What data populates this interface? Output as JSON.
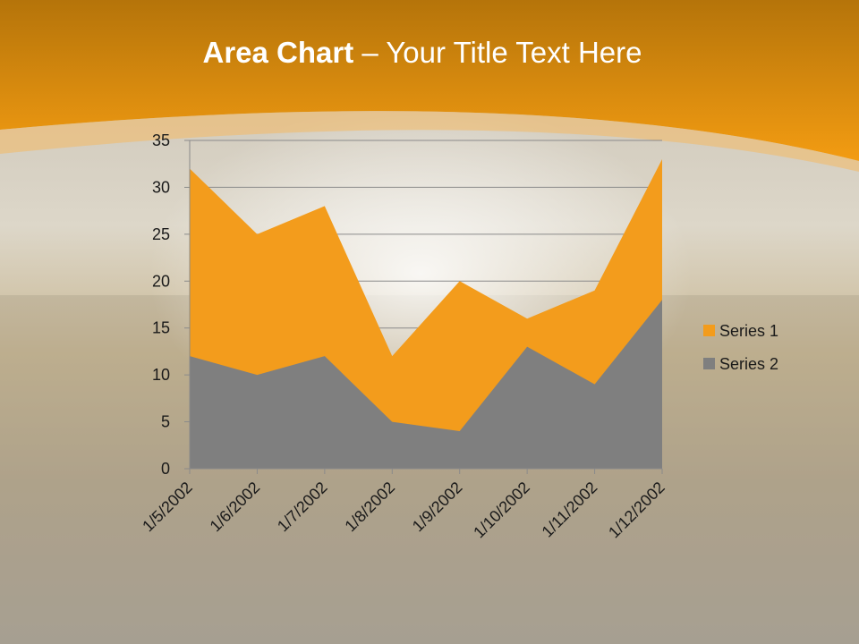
{
  "slide": {
    "title_bold": "Area Chart",
    "title_rest": " – Your Title Text Here",
    "colors": {
      "banner": "#f39c12",
      "banner_dark": "#b8720a",
      "series1": "#f39c1c",
      "series2": "#7f7f7f"
    }
  },
  "chart_data": {
    "type": "area",
    "stacked": false,
    "x": [
      "1/5/2002",
      "1/6/2002",
      "1/7/2002",
      "1/8/2002",
      "1/9/2002",
      "1/10/2002",
      "1/11/2002",
      "1/12/2002"
    ],
    "series": [
      {
        "name": "Series 1",
        "values": [
          32,
          25,
          28,
          12,
          20,
          16,
          19,
          33
        ],
        "color": "#f39c1c"
      },
      {
        "name": "Series 2",
        "values": [
          12,
          10,
          12,
          5,
          4,
          13,
          9,
          18
        ],
        "color": "#7f7f7f"
      }
    ],
    "yticks": [
      "0",
      "5",
      "10",
      "15",
      "20",
      "25",
      "30",
      "35"
    ],
    "ylim": [
      0,
      35
    ],
    "grid": true,
    "legend": "right"
  }
}
